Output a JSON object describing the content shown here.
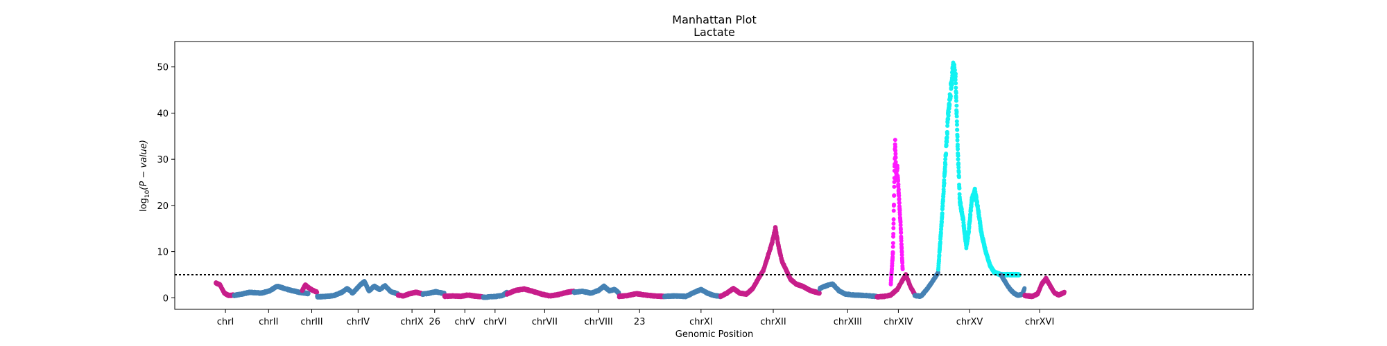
{
  "chart_data": {
    "type": "scatter",
    "title": "Manhattan Plot",
    "subtitle": "Lactate",
    "xlabel": "Genomic Position",
    "ylabel_parts": [
      "log",
      "10",
      "(P − value)"
    ],
    "ylim": [
      -2.5,
      55.5
    ],
    "xlim": [
      0,
      1000
    ],
    "yticks": [
      0,
      10,
      20,
      30,
      40,
      50
    ],
    "significance_threshold": 5.0,
    "colors": {
      "magenta_dark": "#c71f8b",
      "steel_blue": "#4682b4",
      "magenta_bright": "#ff19ff",
      "cyan": "#12f2f2",
      "threshold_line": "#000000"
    },
    "xticks": [
      {
        "label": "chrI",
        "x": 47
      },
      {
        "label": "chrII",
        "x": 87
      },
      {
        "label": "chrIII",
        "x": 127
      },
      {
        "label": "chrIV",
        "x": 170
      },
      {
        "label": "chrIX",
        "x": 220
      },
      {
        "label": "26",
        "x": 241
      },
      {
        "label": "chrV",
        "x": 269
      },
      {
        "label": "chrVI",
        "x": 297
      },
      {
        "label": "chrVII",
        "x": 343
      },
      {
        "label": "chrVIII",
        "x": 393
      },
      {
        "label": "23",
        "x": 431
      },
      {
        "label": "chrXI",
        "x": 488
      },
      {
        "label": "chrXII",
        "x": 555
      },
      {
        "label": "chrXIII",
        "x": 624
      },
      {
        "label": "chrXIV",
        "x": 671
      },
      {
        "label": "chrXV",
        "x": 737
      },
      {
        "label": "chrXVI",
        "x": 802
      }
    ],
    "segments": [
      {
        "chrom": "chrI",
        "x_start": 38,
        "x_end": 55,
        "color": "magenta_dark",
        "profile": [
          [
            38,
            3.2
          ],
          [
            42,
            2.8
          ],
          [
            46,
            1.0
          ],
          [
            50,
            0.5
          ],
          [
            55,
            0.6
          ]
        ]
      },
      {
        "chrom": "chrII",
        "x_start": 55,
        "x_end": 124,
        "color": "steel_blue",
        "profile": [
          [
            55,
            0.5
          ],
          [
            62,
            0.8
          ],
          [
            70,
            1.2
          ],
          [
            80,
            1.0
          ],
          [
            88,
            1.5
          ],
          [
            95,
            2.5
          ],
          [
            105,
            1.8
          ],
          [
            115,
            1.2
          ],
          [
            124,
            0.9
          ]
        ]
      },
      {
        "chrom": "chrIII",
        "x_start": 118,
        "x_end": 132,
        "color": "magenta_dark",
        "profile": [
          [
            118,
            1.5
          ],
          [
            121,
            2.8
          ],
          [
            124,
            2.2
          ],
          [
            128,
            1.6
          ],
          [
            132,
            1.2
          ]
        ]
      },
      {
        "chrom": "chrIV",
        "x_start": 132,
        "x_end": 207,
        "color": "steel_blue",
        "profile": [
          [
            132,
            0.2
          ],
          [
            140,
            0.3
          ],
          [
            148,
            0.5
          ],
          [
            155,
            1.2
          ],
          [
            160,
            2.0
          ],
          [
            165,
            1.0
          ],
          [
            172,
            2.8
          ],
          [
            176,
            3.5
          ],
          [
            180,
            1.5
          ],
          [
            185,
            2.5
          ],
          [
            190,
            1.8
          ],
          [
            195,
            2.6
          ],
          [
            200,
            1.4
          ],
          [
            207,
            0.8
          ]
        ]
      },
      {
        "chrom": "chrIX",
        "x_start": 207,
        "x_end": 230,
        "color": "magenta_dark",
        "profile": [
          [
            207,
            0.6
          ],
          [
            212,
            0.4
          ],
          [
            218,
            0.9
          ],
          [
            224,
            1.2
          ],
          [
            230,
            0.8
          ]
        ]
      },
      {
        "chrom": "26",
        "x_start": 230,
        "x_end": 250,
        "color": "steel_blue",
        "profile": [
          [
            230,
            0.8
          ],
          [
            236,
            1.0
          ],
          [
            242,
            1.3
          ],
          [
            250,
            0.9
          ]
        ]
      },
      {
        "chrom": "chrV",
        "x_start": 250,
        "x_end": 286,
        "color": "magenta_dark",
        "profile": [
          [
            250,
            0.3
          ],
          [
            258,
            0.4
          ],
          [
            265,
            0.3
          ],
          [
            272,
            0.6
          ],
          [
            280,
            0.3
          ],
          [
            286,
            0.2
          ]
        ]
      },
      {
        "chrom": "chrVI",
        "x_start": 286,
        "x_end": 308,
        "color": "steel_blue",
        "profile": [
          [
            286,
            0.1
          ],
          [
            292,
            0.2
          ],
          [
            298,
            0.3
          ],
          [
            304,
            0.5
          ],
          [
            308,
            1.2
          ]
        ]
      },
      {
        "chrom": "chrVII",
        "x_start": 308,
        "x_end": 370,
        "color": "magenta_dark",
        "profile": [
          [
            308,
            0.8
          ],
          [
            316,
            1.6
          ],
          [
            324,
            1.9
          ],
          [
            332,
            1.4
          ],
          [
            340,
            0.8
          ],
          [
            348,
            0.4
          ],
          [
            356,
            0.7
          ],
          [
            364,
            1.2
          ],
          [
            370,
            1.4
          ]
        ]
      },
      {
        "chrom": "chrVIII",
        "x_start": 370,
        "x_end": 412,
        "color": "steel_blue",
        "profile": [
          [
            370,
            1.2
          ],
          [
            378,
            1.4
          ],
          [
            386,
            1.0
          ],
          [
            393,
            1.6
          ],
          [
            398,
            2.5
          ],
          [
            403,
            1.5
          ],
          [
            408,
            1.8
          ],
          [
            412,
            1.0
          ]
        ]
      },
      {
        "chrom": "23",
        "x_start": 412,
        "x_end": 454,
        "color": "magenta_dark",
        "profile": [
          [
            412,
            0.3
          ],
          [
            420,
            0.5
          ],
          [
            428,
            0.9
          ],
          [
            436,
            0.6
          ],
          [
            444,
            0.4
          ],
          [
            454,
            0.3
          ]
        ]
      },
      {
        "chrom": "chrXI",
        "x_start": 454,
        "x_end": 506,
        "color": "steel_blue",
        "profile": [
          [
            454,
            0.3
          ],
          [
            464,
            0.4
          ],
          [
            474,
            0.3
          ],
          [
            482,
            1.2
          ],
          [
            488,
            1.8
          ],
          [
            494,
            1.0
          ],
          [
            500,
            0.5
          ],
          [
            506,
            0.3
          ]
        ]
      },
      {
        "chrom": "chrXII",
        "x_start": 506,
        "x_end": 598,
        "color": "magenta_dark",
        "profile": [
          [
            506,
            0.3
          ],
          [
            512,
            1.0
          ],
          [
            518,
            2.0
          ],
          [
            524,
            1.0
          ],
          [
            530,
            0.8
          ],
          [
            536,
            2.0
          ],
          [
            542,
            4.5
          ],
          [
            546,
            6.0
          ],
          [
            550,
            9.0
          ],
          [
            554,
            12.0
          ],
          [
            557,
            15.0
          ],
          [
            560,
            11.0
          ],
          [
            563,
            8.0
          ],
          [
            567,
            6.0
          ],
          [
            571,
            4.0
          ],
          [
            576,
            3.0
          ],
          [
            582,
            2.5
          ],
          [
            590,
            1.5
          ],
          [
            598,
            1.0
          ]
        ]
      },
      {
        "chrom": "chrXIII",
        "x_start": 598,
        "x_end": 651,
        "color": "steel_blue",
        "profile": [
          [
            598,
            2.0
          ],
          [
            604,
            2.6
          ],
          [
            610,
            3.0
          ],
          [
            616,
            1.5
          ],
          [
            622,
            0.8
          ],
          [
            630,
            0.6
          ],
          [
            640,
            0.5
          ],
          [
            651,
            0.3
          ]
        ]
      },
      {
        "chrom": "chrXIV",
        "x_start": 651,
        "x_end": 686,
        "color": "magenta_dark",
        "profile": [
          [
            651,
            0.2
          ],
          [
            658,
            0.3
          ],
          [
            664,
            0.6
          ],
          [
            670,
            1.8
          ],
          [
            674,
            3.5
          ],
          [
            678,
            5.0
          ],
          [
            682,
            2.5
          ],
          [
            686,
            0.8
          ]
        ]
      },
      {
        "chrom": "chrXIV-peak",
        "x_start": 664,
        "x_end": 675,
        "color": "magenta_bright",
        "profile": [
          [
            664,
            3.0
          ],
          [
            666,
            10.0
          ],
          [
            668,
            34.0
          ],
          [
            669,
            26.0
          ],
          [
            670,
            28.0
          ],
          [
            671,
            24.0
          ],
          [
            673,
            16.0
          ],
          [
            675,
            6.0
          ]
        ]
      },
      {
        "chrom": "chrXV-left",
        "x_start": 686,
        "x_end": 708,
        "color": "steel_blue",
        "profile": [
          [
            686,
            0.5
          ],
          [
            692,
            0.3
          ],
          [
            698,
            2.0
          ],
          [
            704,
            4.0
          ],
          [
            708,
            5.5
          ]
        ]
      },
      {
        "chrom": "chrXV",
        "x_start": 708,
        "x_end": 783,
        "color": "cyan",
        "profile": [
          [
            708,
            6.0
          ],
          [
            711,
            16.0
          ],
          [
            714,
            27.0
          ],
          [
            717,
            39.0
          ],
          [
            720,
            46.0
          ],
          [
            722,
            50.0
          ],
          [
            724,
            48.0
          ],
          [
            726,
            33.0
          ],
          [
            728,
            21.0
          ],
          [
            731,
            17.0
          ],
          [
            734,
            11.0
          ],
          [
            736,
            14.0
          ],
          [
            739,
            21.0
          ],
          [
            742,
            23.0
          ],
          [
            745,
            19.0
          ],
          [
            748,
            14.0
          ],
          [
            752,
            10.0
          ],
          [
            756,
            7.0
          ],
          [
            760,
            5.5
          ],
          [
            766,
            5.0
          ]
        ]
      },
      {
        "chrom": "chrXV-right",
        "x_start": 766,
        "x_end": 788,
        "color": "steel_blue",
        "profile": [
          [
            766,
            5.0
          ],
          [
            770,
            3.5
          ],
          [
            774,
            2.0
          ],
          [
            778,
            1.0
          ],
          [
            782,
            0.5
          ],
          [
            786,
            0.8
          ],
          [
            788,
            2.0
          ]
        ]
      },
      {
        "chrom": "chrXVI",
        "x_start": 788,
        "x_end": 825,
        "color": "magenta_dark",
        "profile": [
          [
            788,
            0.5
          ],
          [
            795,
            0.3
          ],
          [
            800,
            0.8
          ],
          [
            804,
            3.0
          ],
          [
            808,
            4.2
          ],
          [
            812,
            2.5
          ],
          [
            816,
            1.0
          ],
          [
            820,
            0.6
          ],
          [
            825,
            1.2
          ]
        ]
      }
    ]
  }
}
